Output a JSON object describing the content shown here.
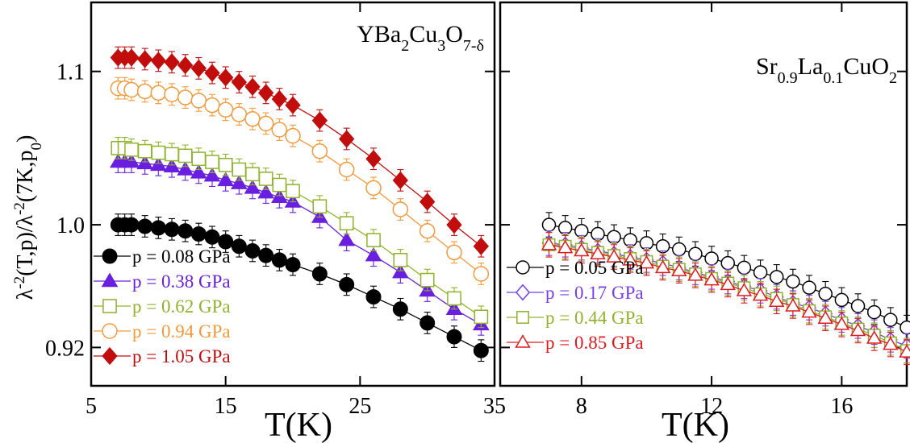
{
  "chart_data": [
    {
      "type": "scatter",
      "title": "YBa2Cu3O7-δ",
      "title_parts": [
        {
          "text": "YBa",
          "sub": false
        },
        {
          "text": "2",
          "sub": true
        },
        {
          "text": "Cu",
          "sub": false
        },
        {
          "text": "3",
          "sub": true
        },
        {
          "text": "O",
          "sub": false
        },
        {
          "text": "7-δ",
          "sub": true
        }
      ],
      "xlabel": "T(K)",
      "ylabel": "λ-2(T,p)/λ-2(7K,p0)",
      "ylabel_parts": [
        {
          "text": "λ",
          "sup": false,
          "sub": false
        },
        {
          "text": "-2",
          "sup": true,
          "sub": false
        },
        {
          "text": "(T,p)/λ",
          "sup": false,
          "sub": false
        },
        {
          "text": "-2",
          "sup": true,
          "sub": false
        },
        {
          "text": "(7K,p",
          "sup": false,
          "sub": false
        },
        {
          "text": "0",
          "sup": false,
          "sub": true
        },
        {
          "text": ")",
          "sup": false,
          "sub": false
        }
      ],
      "xlim": [
        5,
        35
      ],
      "ylim": [
        0.895,
        1.145
      ],
      "x_ticks": [
        5,
        15,
        25,
        35
      ],
      "x_tick_labels": [
        "5",
        "15",
        "25",
        "35"
      ],
      "y_ticks": [
        0.92,
        1.0,
        1.1
      ],
      "y_tick_labels": [
        "0.92",
        "1.0",
        "1.1"
      ],
      "legend_position": "bottom-left",
      "series": [
        {
          "name": "p = 0.08 GPa",
          "color": "#000000",
          "marker": "circle",
          "filled": true,
          "error": 0.007,
          "x": [
            7,
            7.5,
            8,
            9,
            10,
            11,
            12,
            13,
            14,
            15,
            16,
            17,
            18,
            19,
            20,
            22,
            24,
            26,
            28,
            30,
            32,
            34
          ],
          "y": [
            1.0,
            1.0,
            1.0,
            0.999,
            0.998,
            0.997,
            0.996,
            0.994,
            0.992,
            0.989,
            0.986,
            0.983,
            0.98,
            0.977,
            0.974,
            0.968,
            0.961,
            0.953,
            0.945,
            0.936,
            0.927,
            0.918
          ]
        },
        {
          "name": "p = 0.38 GPa",
          "color": "#6a1ee0",
          "marker": "triangle",
          "filled": true,
          "error": 0.007,
          "x": [
            7,
            7.5,
            8,
            9,
            10,
            11,
            12,
            13,
            14,
            15,
            16,
            17,
            18,
            19,
            20,
            22,
            24,
            26,
            28,
            30,
            32,
            34
          ],
          "y": [
            1.041,
            1.041,
            1.041,
            1.04,
            1.039,
            1.038,
            1.036,
            1.034,
            1.032,
            1.029,
            1.027,
            1.024,
            1.021,
            1.018,
            1.015,
            1.005,
            0.99,
            0.98,
            0.969,
            0.957,
            0.945,
            0.935
          ]
        },
        {
          "name": "p = 0.62 GPa",
          "color": "#8fb32a",
          "marker": "square",
          "filled": false,
          "error": 0.007,
          "x": [
            7,
            7.5,
            8,
            9,
            10,
            11,
            12,
            13,
            14,
            15,
            16,
            17,
            18,
            19,
            20,
            22,
            24,
            26,
            28,
            30,
            32,
            34
          ],
          "y": [
            1.05,
            1.05,
            1.049,
            1.048,
            1.047,
            1.046,
            1.045,
            1.043,
            1.041,
            1.039,
            1.036,
            1.033,
            1.03,
            1.026,
            1.022,
            1.012,
            1.001,
            0.99,
            0.977,
            0.964,
            0.952,
            0.94
          ]
        },
        {
          "name": "p = 0.94 GPa",
          "color": "#f39a3a",
          "marker": "circle",
          "filled": false,
          "error": 0.007,
          "x": [
            7,
            7.5,
            8,
            9,
            10,
            11,
            12,
            13,
            14,
            15,
            16,
            17,
            18,
            19,
            20,
            22,
            24,
            26,
            28,
            30,
            32,
            34
          ],
          "y": [
            1.089,
            1.089,
            1.088,
            1.087,
            1.086,
            1.085,
            1.083,
            1.081,
            1.078,
            1.075,
            1.072,
            1.069,
            1.066,
            1.062,
            1.058,
            1.048,
            1.036,
            1.024,
            1.01,
            0.996,
            0.982,
            0.968
          ]
        },
        {
          "name": "p = 1.05 GPa",
          "color": "#c20d0d",
          "marker": "diamond",
          "filled": true,
          "error": 0.007,
          "x": [
            7,
            7.5,
            8,
            9,
            10,
            11,
            12,
            13,
            14,
            15,
            16,
            17,
            18,
            19,
            20,
            22,
            24,
            26,
            28,
            30,
            32,
            34
          ],
          "y": [
            1.109,
            1.109,
            1.109,
            1.108,
            1.107,
            1.106,
            1.104,
            1.102,
            1.099,
            1.096,
            1.093,
            1.09,
            1.086,
            1.082,
            1.078,
            1.068,
            1.056,
            1.043,
            1.029,
            1.015,
            1.0,
            0.986
          ]
        }
      ]
    },
    {
      "type": "scatter",
      "title": "Sr0.9La0.1CuO2",
      "title_parts": [
        {
          "text": "Sr",
          "sub": false
        },
        {
          "text": "0.9",
          "sub": true
        },
        {
          "text": "La",
          "sub": false
        },
        {
          "text": "0.1",
          "sub": true
        },
        {
          "text": "CuO",
          "sub": false
        },
        {
          "text": "2",
          "sub": true
        }
      ],
      "xlabel": "T(K)",
      "xlim": [
        5.5,
        18
      ],
      "ylim": [
        0.895,
        1.145
      ],
      "x_ticks": [
        8,
        12,
        16
      ],
      "x_tick_labels": [
        "8",
        "12",
        "16"
      ],
      "legend_position": "bottom-left",
      "series": [
        {
          "name": "p = 0.05 GPa",
          "color": "#000000",
          "marker": "circle",
          "filled": false,
          "error": 0.008,
          "x": [
            7,
            7.5,
            8,
            8.5,
            9,
            9.5,
            10,
            10.5,
            11,
            11.5,
            12,
            12.5,
            13,
            13.5,
            14,
            14.5,
            15,
            15.5,
            16,
            16.5,
            17,
            17.5,
            18
          ],
          "y": [
            1.0,
            0.998,
            0.996,
            0.994,
            0.992,
            0.99,
            0.988,
            0.986,
            0.984,
            0.981,
            0.978,
            0.975,
            0.972,
            0.969,
            0.966,
            0.963,
            0.959,
            0.955,
            0.951,
            0.947,
            0.943,
            0.938,
            0.933
          ]
        },
        {
          "name": "p = 0.17 GPa",
          "color": "#7a3ee8",
          "marker": "diamond",
          "filled": false,
          "error": 0.008,
          "x": [
            7,
            7.5,
            8,
            8.5,
            9,
            9.5,
            10,
            10.5,
            11,
            11.5,
            12,
            12.5,
            13,
            13.5,
            14,
            14.5,
            15,
            15.5,
            16,
            16.5,
            17,
            17.5,
            18
          ],
          "y": [
            0.988,
            0.987,
            0.985,
            0.983,
            0.981,
            0.979,
            0.977,
            0.975,
            0.972,
            0.969,
            0.966,
            0.963,
            0.96,
            0.957,
            0.953,
            0.949,
            0.946,
            0.942,
            0.938,
            0.934,
            0.93,
            0.925,
            0.921
          ]
        },
        {
          "name": "p = 0.44 GPa",
          "color": "#8fb32a",
          "marker": "square",
          "filled": false,
          "error": 0.008,
          "x": [
            7,
            7.5,
            8,
            8.5,
            9,
            9.5,
            10,
            10.5,
            11,
            11.5,
            12,
            12.5,
            13,
            13.5,
            14,
            14.5,
            15,
            15.5,
            16,
            16.5,
            17,
            17.5,
            18
          ],
          "y": [
            0.987,
            0.986,
            0.984,
            0.982,
            0.98,
            0.978,
            0.976,
            0.973,
            0.971,
            0.968,
            0.965,
            0.962,
            0.959,
            0.955,
            0.952,
            0.948,
            0.944,
            0.94,
            0.936,
            0.932,
            0.928,
            0.923,
            0.918
          ]
        },
        {
          "name": "p = 0.85 GPa",
          "color": "#e0191f",
          "marker": "triangle",
          "filled": false,
          "error": 0.008,
          "x": [
            7,
            7.5,
            8,
            8.5,
            9,
            9.5,
            10,
            10.5,
            11,
            11.5,
            12,
            12.5,
            13,
            13.5,
            14,
            14.5,
            15,
            15.5,
            16,
            16.5,
            17,
            17.5,
            18
          ],
          "y": [
            0.987,
            0.985,
            0.983,
            0.981,
            0.979,
            0.977,
            0.975,
            0.972,
            0.97,
            0.967,
            0.964,
            0.961,
            0.957,
            0.954,
            0.95,
            0.947,
            0.943,
            0.939,
            0.935,
            0.931,
            0.926,
            0.922,
            0.917
          ]
        }
      ]
    }
  ]
}
